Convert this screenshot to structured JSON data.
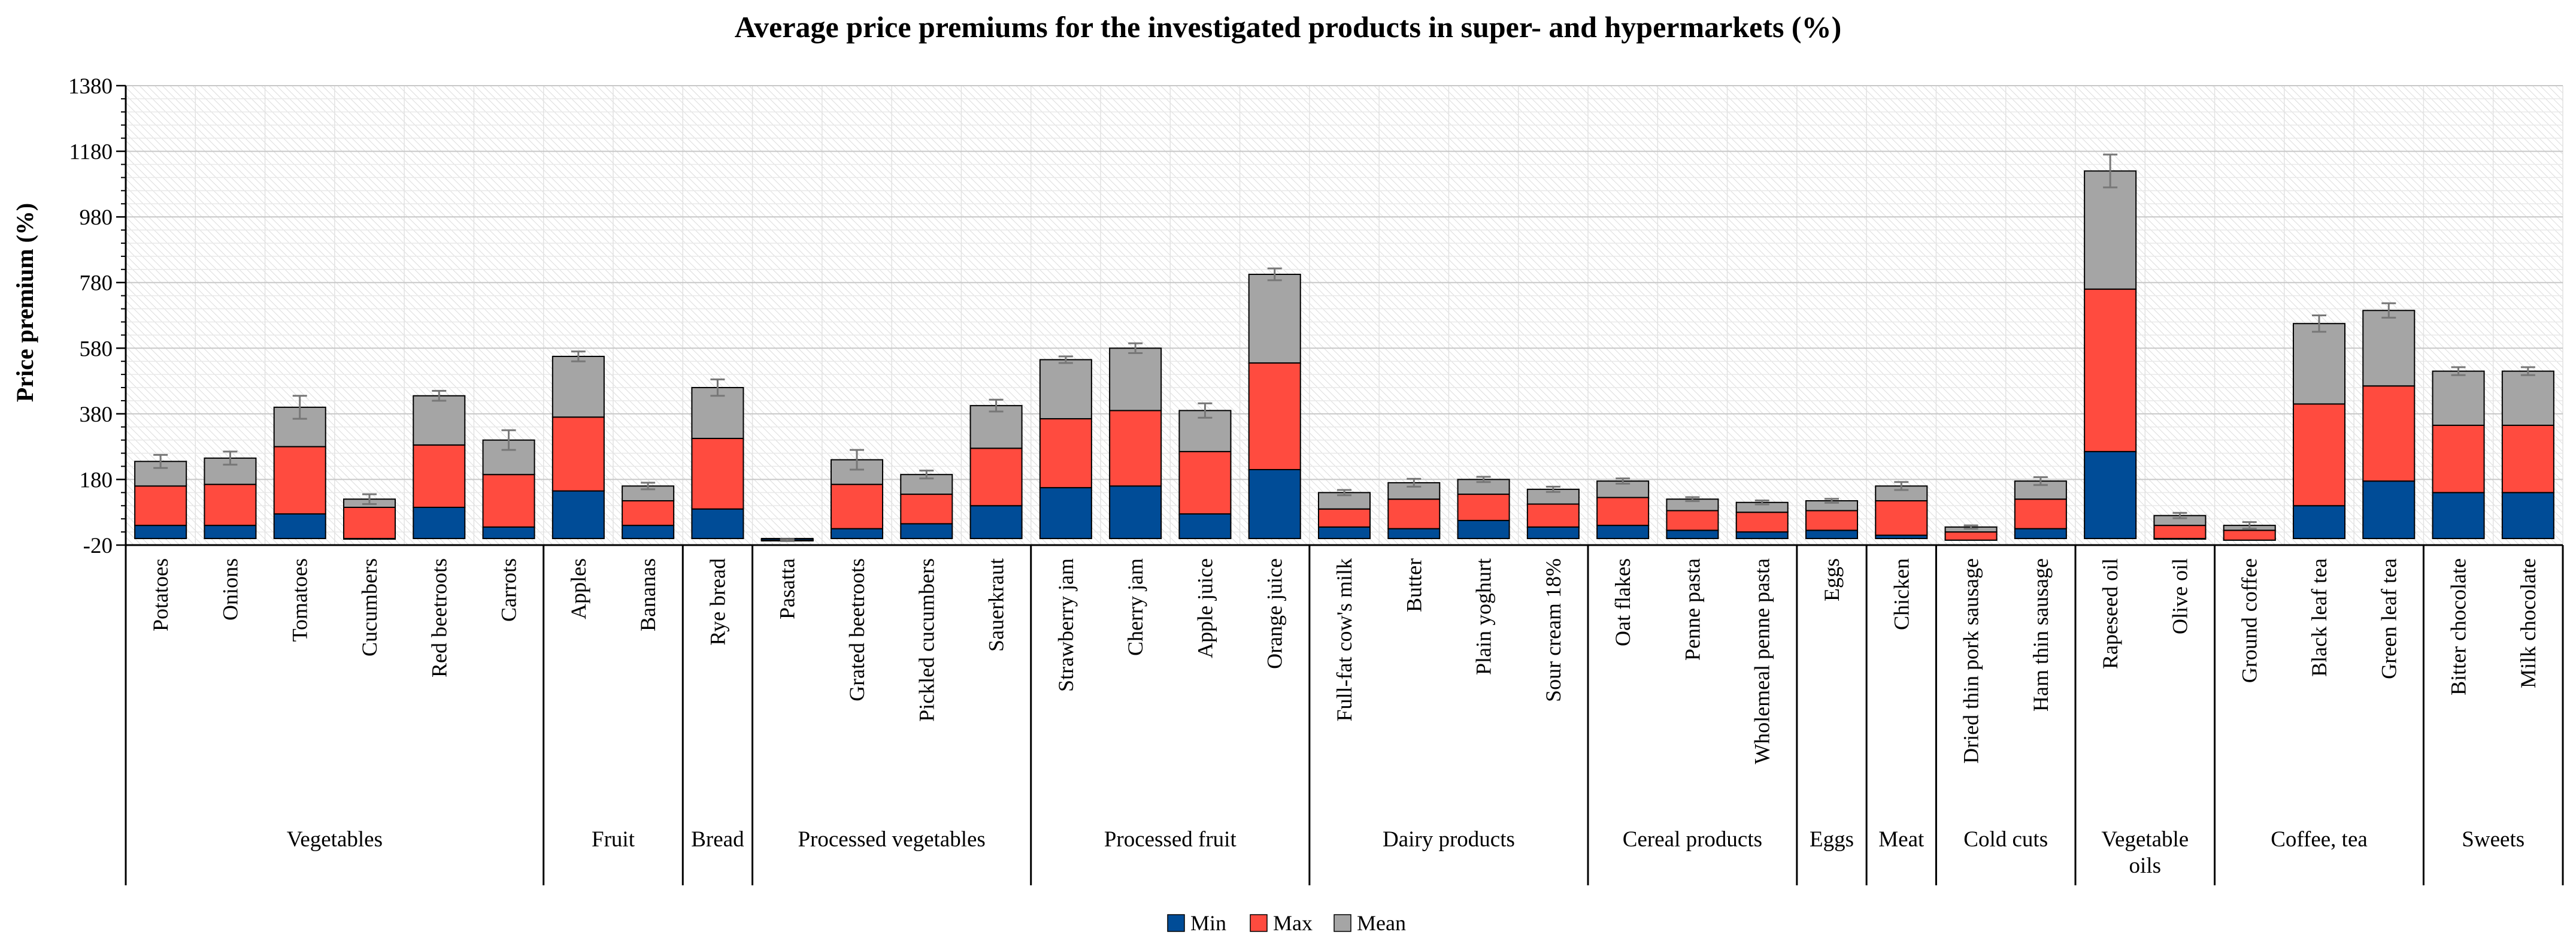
{
  "chart_data": {
    "type": "bar",
    "stacked": true,
    "title": "Average price premiums for the investigated products in super- and hypermarkets (%)",
    "ylabel": "Price premium (%)",
    "xlabel": "",
    "ylim": [
      -20,
      1380
    ],
    "yticks": [
      -20,
      180,
      380,
      580,
      780,
      980,
      1180,
      1380
    ],
    "minor_tick_step": 40,
    "grid": true,
    "legend_position": "bottom-center",
    "categories": [
      "Potatoes",
      "Onions",
      "Tomatoes",
      "Cucumbers",
      "Red beetroots",
      "Carrots",
      "Apples",
      "Bananas",
      "Rye bread",
      "Pasatta",
      "Grated beetroots",
      "Pickled cucumbers",
      "Sauerkraut",
      "Strawberry jam",
      "Cherry jam",
      "Apple juice",
      "Orange juice",
      "Full-fat cow's milk",
      "Butter",
      "Plain yoghurt",
      "Sour cream  18%",
      "Oat flakes",
      "Penne pasta",
      "Wholemeal penne pasta",
      "Eggs",
      "Chicken",
      "Dried thin pork sausage",
      "Ham thin sausage",
      "Rapeseed oil",
      "Olive oil",
      "Ground coffee",
      "Black leaf tea",
      "Green leaf tea",
      "Bitter chocolate",
      "Milk chocolate"
    ],
    "groups": [
      {
        "label": "Vegetables",
        "size": 6
      },
      {
        "label": "Fruit",
        "size": 2
      },
      {
        "label": "Bread",
        "size": 1
      },
      {
        "label": "Processed vegetables",
        "size": 4
      },
      {
        "label": "Processed fruit",
        "size": 4
      },
      {
        "label": "Dairy products",
        "size": 4
      },
      {
        "label": "Cereal products",
        "size": 3
      },
      {
        "label": "Eggs",
        "size": 1
      },
      {
        "label": "Meat",
        "size": 1
      },
      {
        "label": "Cold cuts",
        "size": 2
      },
      {
        "label": "Vegetable oils",
        "size": 2
      },
      {
        "label": "Coffee, tea",
        "size": 3
      },
      {
        "label": "Sweets",
        "size": 2
      }
    ],
    "series": [
      {
        "name": "Min",
        "color": "#004c97",
        "values": [
          40,
          40,
          75,
          0,
          95,
          35,
          145,
          40,
          90,
          -5,
          30,
          45,
          100,
          155,
          160,
          75,
          210,
          35,
          30,
          55,
          35,
          40,
          25,
          20,
          25,
          10,
          -5,
          30,
          265,
          0,
          -5,
          100,
          175,
          140,
          140
        ]
      },
      {
        "name": "Max",
        "color": "#ff4b3f",
        "values": [
          120,
          125,
          205,
          95,
          190,
          160,
          225,
          75,
          215,
          0,
          135,
          90,
          175,
          210,
          230,
          190,
          325,
          55,
          90,
          80,
          70,
          85,
          60,
          60,
          60,
          105,
          25,
          90,
          495,
          40,
          30,
          310,
          290,
          205,
          205
        ]
      },
      {
        "name": "Mean",
        "color": "#a5a5a5",
        "values": [
          75,
          80,
          120,
          25,
          150,
          105,
          185,
          45,
          155,
          0,
          75,
          60,
          130,
          180,
          190,
          125,
          270,
          50,
          50,
          45,
          45,
          50,
          35,
          30,
          30,
          45,
          15,
          55,
          360,
          30,
          15,
          245,
          230,
          165,
          165
        ]
      }
    ],
    "error_bar": [
      20,
      20,
      35,
      15,
      15,
      30,
      15,
      10,
      25,
      3,
      30,
      12,
      18,
      10,
      15,
      22,
      18,
      8,
      12,
      8,
      8,
      8,
      6,
      6,
      6,
      12,
      5,
      12,
      50,
      8,
      10,
      25,
      22,
      12,
      12
    ]
  },
  "legend": {
    "min": "Min",
    "max": "Max",
    "mean": "Mean"
  }
}
